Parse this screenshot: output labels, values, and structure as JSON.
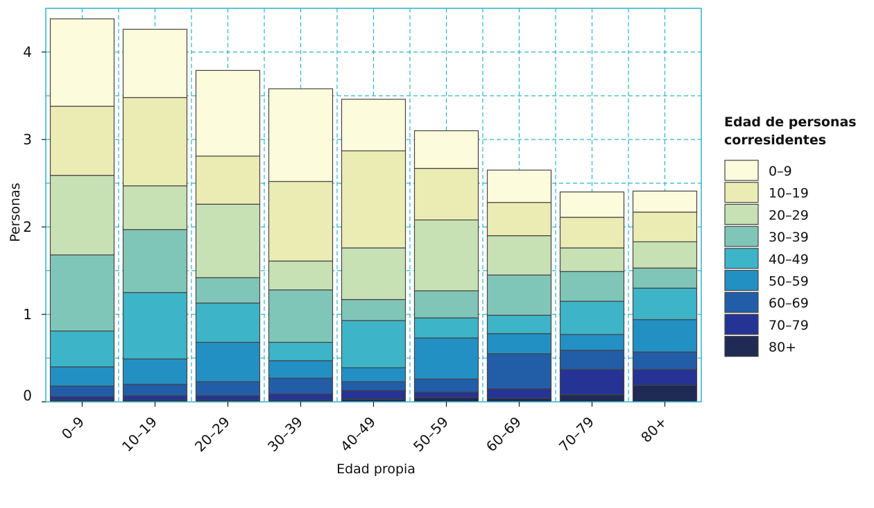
{
  "chart_data": {
    "type": "bar",
    "stacked": true,
    "xlabel": "Edad propia",
    "ylabel": "Personas",
    "ylim": [
      0,
      4.5
    ],
    "yticks": [
      0,
      1,
      2,
      3,
      4
    ],
    "ytick_labels": [
      "0",
      "1",
      "2",
      "3",
      "4"
    ],
    "grid": true,
    "categories": [
      "0–9",
      "10–19",
      "20–29",
      "30–39",
      "40–49",
      "50–59",
      "60–69",
      "70–79",
      "80+"
    ],
    "legend": {
      "title": "Edad de personas corresidentes",
      "title_lines": [
        "Edad de personas",
        "corresidentes"
      ],
      "placement": "right"
    },
    "series": [
      {
        "name": "80+",
        "color": "#1f2a55",
        "values": [
          0.02,
          0.02,
          0.02,
          0.02,
          0.03,
          0.05,
          0.04,
          0.08,
          0.19
        ]
      },
      {
        "name": "70–79",
        "color": "#253494",
        "values": [
          0.04,
          0.05,
          0.05,
          0.07,
          0.1,
          0.06,
          0.11,
          0.29,
          0.18
        ]
      },
      {
        "name": "60–69",
        "color": "#225ea8",
        "values": [
          0.12,
          0.13,
          0.16,
          0.18,
          0.1,
          0.15,
          0.4,
          0.22,
          0.2
        ]
      },
      {
        "name": "50–59",
        "color": "#2390c4",
        "values": [
          0.22,
          0.29,
          0.45,
          0.2,
          0.16,
          0.47,
          0.23,
          0.18,
          0.37
        ]
      },
      {
        "name": "40–49",
        "color": "#3db4c8",
        "values": [
          0.41,
          0.76,
          0.45,
          0.21,
          0.54,
          0.23,
          0.21,
          0.38,
          0.36
        ]
      },
      {
        "name": "30–39",
        "color": "#80c6b8",
        "values": [
          0.87,
          0.72,
          0.29,
          0.6,
          0.24,
          0.31,
          0.46,
          0.34,
          0.23
        ]
      },
      {
        "name": "20–29",
        "color": "#c7e1b5",
        "values": [
          0.91,
          0.5,
          0.84,
          0.33,
          0.59,
          0.81,
          0.45,
          0.27,
          0.3
        ]
      },
      {
        "name": "10–19",
        "color": "#ebebb4",
        "values": [
          0.79,
          1.01,
          0.55,
          0.91,
          1.11,
          0.59,
          0.38,
          0.35,
          0.34
        ]
      },
      {
        "name": "0–9",
        "color": "#fcfbdc",
        "values": [
          1.0,
          0.78,
          0.98,
          1.06,
          0.59,
          0.43,
          0.37,
          0.29,
          0.24
        ]
      }
    ]
  },
  "colors": {
    "grid": "#2cb2c9",
    "frame": "#2cb2c9",
    "bar_stroke": "#444444"
  }
}
